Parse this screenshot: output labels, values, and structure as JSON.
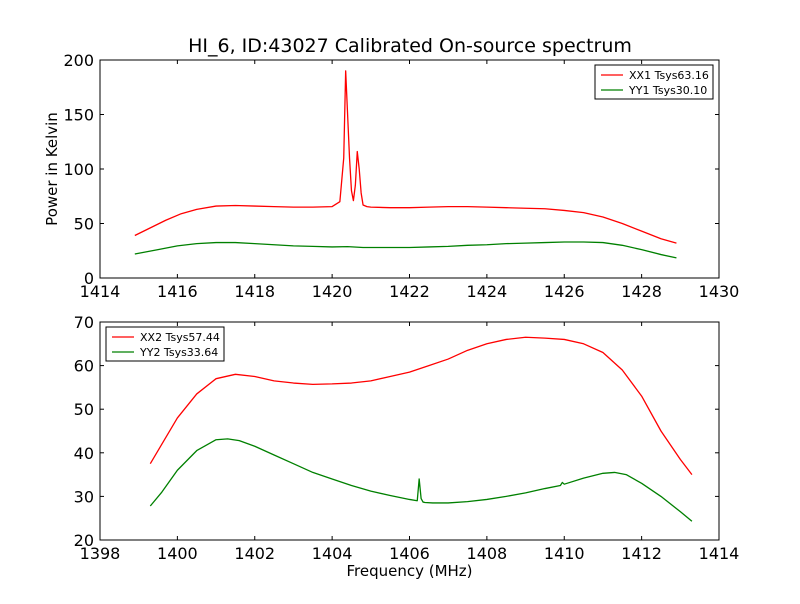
{
  "figure": {
    "title": "HI_6, ID:43027 Calibrated On-source spectrum"
  },
  "chart_data": [
    {
      "type": "line",
      "title": "HI_6, ID:43027 Calibrated On-source spectrum",
      "xlabel": "",
      "ylabel": "Power in Kelvin",
      "xlim": [
        1414,
        1430
      ],
      "ylim": [
        0,
        200
      ],
      "xticks": [
        1414,
        1416,
        1418,
        1420,
        1422,
        1424,
        1426,
        1428,
        1430
      ],
      "yticks": [
        0,
        50,
        100,
        150,
        200
      ],
      "grid": false,
      "legend_position": "top-right",
      "series": [
        {
          "name": "XX1 Tsys63.16",
          "color": "#ff0000",
          "x": [
            1414.9,
            1415.3,
            1415.7,
            1416.1,
            1416.5,
            1417.0,
            1417.5,
            1418.0,
            1418.5,
            1419.0,
            1419.5,
            1420.0,
            1420.2,
            1420.3,
            1420.35,
            1420.4,
            1420.45,
            1420.5,
            1420.55,
            1420.6,
            1420.65,
            1420.7,
            1420.75,
            1420.8,
            1420.9,
            1421.0,
            1421.5,
            1422.0,
            1422.5,
            1423.0,
            1423.5,
            1424.0,
            1424.5,
            1425.0,
            1425.5,
            1426.0,
            1426.5,
            1427.0,
            1427.5,
            1428.0,
            1428.5,
            1428.9
          ],
          "y": [
            39,
            46,
            53,
            59,
            63,
            66,
            66.5,
            66,
            65.5,
            65,
            65,
            65.5,
            70,
            110,
            190,
            150,
            110,
            80,
            71,
            85,
            116,
            100,
            78,
            67,
            65.5,
            65,
            64.5,
            64.5,
            65,
            65.5,
            65.5,
            65,
            64.5,
            64,
            63.5,
            62,
            60,
            56,
            50,
            43,
            36,
            32
          ]
        },
        {
          "name": "YY1 Tsys30.10",
          "color": "#008000",
          "x": [
            1414.9,
            1415.5,
            1416.0,
            1416.5,
            1417.0,
            1417.5,
            1418.0,
            1418.5,
            1419.0,
            1419.5,
            1420.0,
            1420.4,
            1420.8,
            1421.5,
            1422.0,
            1422.5,
            1423.0,
            1423.5,
            1424.0,
            1424.5,
            1425.0,
            1425.5,
            1426.0,
            1426.5,
            1427.0,
            1427.5,
            1428.0,
            1428.5,
            1428.9
          ],
          "y": [
            22,
            26,
            29.5,
            31.5,
            32.5,
            32.5,
            31.5,
            30.5,
            29.5,
            29,
            28.5,
            28.8,
            28,
            28,
            28,
            28.5,
            29,
            30,
            30.5,
            31.5,
            32,
            32.5,
            33,
            33,
            32.5,
            30,
            26,
            21.5,
            18.5
          ]
        }
      ]
    },
    {
      "type": "line",
      "title": "",
      "xlabel": "Frequency (MHz)",
      "ylabel": "",
      "xlim": [
        1398,
        1414
      ],
      "ylim": [
        20,
        70
      ],
      "xticks": [
        1398,
        1400,
        1402,
        1404,
        1406,
        1408,
        1410,
        1412,
        1414
      ],
      "yticks": [
        20,
        30,
        40,
        50,
        60,
        70
      ],
      "grid": false,
      "legend_position": "top-left",
      "series": [
        {
          "name": "XX2 Tsys57.44",
          "color": "#ff0000",
          "x": [
            1399.3,
            1399.6,
            1400.0,
            1400.5,
            1401.0,
            1401.5,
            1402.0,
            1402.5,
            1403.0,
            1403.5,
            1404.0,
            1404.5,
            1405.0,
            1405.5,
            1406.0,
            1406.5,
            1407.0,
            1407.5,
            1408.0,
            1408.5,
            1409.0,
            1409.5,
            1410.0,
            1410.5,
            1411.0,
            1411.5,
            1412.0,
            1412.5,
            1413.0,
            1413.3
          ],
          "y": [
            37.5,
            42,
            48,
            53.5,
            57,
            58,
            57.5,
            56.5,
            56,
            55.7,
            55.8,
            56,
            56.5,
            57.5,
            58.5,
            60,
            61.5,
            63.5,
            65,
            66,
            66.5,
            66.3,
            66,
            65,
            63,
            59,
            53,
            45,
            38.5,
            35
          ]
        },
        {
          "name": "YY2 Tsys33.64",
          "color": "#008000",
          "x": [
            1399.3,
            1399.6,
            1400.0,
            1400.5,
            1401.0,
            1401.3,
            1401.6,
            1402.0,
            1402.5,
            1403.0,
            1403.5,
            1404.0,
            1404.5,
            1405.0,
            1405.5,
            1406.0,
            1406.2,
            1406.25,
            1406.3,
            1406.35,
            1406.4,
            1406.6,
            1407.0,
            1407.5,
            1408.0,
            1408.5,
            1409.0,
            1409.5,
            1409.9,
            1409.95,
            1410.0,
            1410.5,
            1411.0,
            1411.3,
            1411.6,
            1412.0,
            1412.5,
            1413.0,
            1413.3
          ],
          "y": [
            27.8,
            31,
            36,
            40.5,
            43,
            43.2,
            42.8,
            41.5,
            39.5,
            37.5,
            35.5,
            34,
            32.5,
            31.2,
            30.2,
            29.3,
            29,
            34,
            29.5,
            28.7,
            28.6,
            28.5,
            28.5,
            28.8,
            29.3,
            30,
            30.8,
            31.8,
            32.5,
            33.2,
            32.8,
            34.2,
            35.3,
            35.5,
            35,
            33,
            30,
            26.5,
            24.3
          ]
        }
      ]
    }
  ]
}
